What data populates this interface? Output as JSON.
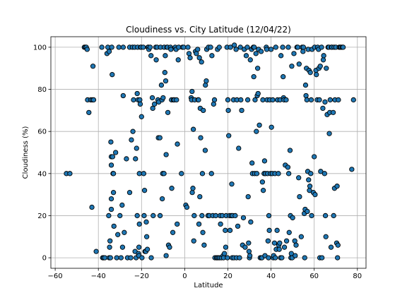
{
  "chart_data": {
    "type": "scatter",
    "title": "Cloudiness vs. City Latitude (12/04/22)",
    "xlabel": "Latitude",
    "ylabel": "Cloudiness (%)",
    "xlim": [
      -62,
      84
    ],
    "ylim": [
      -5,
      105
    ],
    "xticks": [
      -60,
      -40,
      -20,
      0,
      20,
      40,
      60,
      80
    ],
    "yticks": [
      0,
      20,
      40,
      60,
      80,
      100
    ],
    "grid": true,
    "marker_color": "#1f77b4",
    "edge_color": "#000000",
    "points": [
      [
        -54.8,
        40
      ],
      [
        -53.2,
        40
      ],
      [
        -46.5,
        100
      ],
      [
        -46,
        100
      ],
      [
        -45.6,
        100
      ],
      [
        -45.2,
        99
      ],
      [
        -45,
        75
      ],
      [
        -44.4,
        69
      ],
      [
        -43.5,
        75
      ],
      [
        -42.8,
        75
      ],
      [
        -42.5,
        91
      ],
      [
        -43,
        24
      ],
      [
        -42.2,
        75
      ],
      [
        -41,
        3
      ],
      [
        -38.4,
        100
      ],
      [
        -38,
        0
      ],
      [
        -37.6,
        0
      ],
      [
        -37,
        0
      ],
      [
        -36,
        97
      ],
      [
        -35.6,
        100
      ],
      [
        -35.2,
        20
      ],
      [
        -35,
        98
      ],
      [
        -35,
        0
      ],
      [
        -34.8,
        5
      ],
      [
        -34.6,
        8
      ],
      [
        -34.4,
        0
      ],
      [
        -34.2,
        55
      ],
      [
        -34,
        44
      ],
      [
        -34,
        48
      ],
      [
        -34,
        28
      ],
      [
        -34,
        23
      ],
      [
        -33.8,
        100
      ],
      [
        -33.6,
        87
      ],
      [
        -33.4,
        48
      ],
      [
        -33.2,
        40
      ],
      [
        -33,
        40
      ],
      [
        -33,
        31
      ],
      [
        -32.8,
        15
      ],
      [
        -32,
        50
      ],
      [
        -31.5,
        0
      ],
      [
        -31,
        11
      ],
      [
        -30.5,
        100
      ],
      [
        -30,
        20
      ],
      [
        -29.5,
        0
      ],
      [
        -29,
        25
      ],
      [
        -28.8,
        5
      ],
      [
        -28.5,
        100
      ],
      [
        -28.5,
        77
      ],
      [
        -28,
        12
      ],
      [
        -27,
        47
      ],
      [
        -26.5,
        0
      ],
      [
        -25.5,
        100
      ],
      [
        -25.5,
        31
      ],
      [
        -25,
        0
      ],
      [
        -24.7,
        56
      ],
      [
        -24.2,
        100
      ],
      [
        -24,
        60
      ],
      [
        -23.7,
        75
      ],
      [
        -23.2,
        100
      ],
      [
        -23,
        3
      ],
      [
        -22.8,
        47
      ],
      [
        -22.5,
        0
      ],
      [
        -22.3,
        52
      ],
      [
        -22,
        78
      ],
      [
        -22,
        20
      ],
      [
        -21.8,
        100
      ],
      [
        -21.6,
        75
      ],
      [
        -21.4,
        2
      ],
      [
        -21.2,
        5
      ],
      [
        -21.2,
        1
      ],
      [
        -21,
        16
      ],
      [
        -21,
        40
      ],
      [
        -20.8,
        75
      ],
      [
        -20.6,
        73
      ],
      [
        -20.4,
        100
      ],
      [
        -20.2,
        100
      ],
      [
        -20,
        67
      ],
      [
        -19.8,
        0
      ],
      [
        -19.2,
        100
      ],
      [
        -19,
        40
      ],
      [
        -18.8,
        20
      ],
      [
        -18.6,
        32
      ],
      [
        -18.4,
        3
      ],
      [
        -18,
        3
      ],
      [
        -17.8,
        17
      ],
      [
        -17.6,
        10
      ],
      [
        -17.3,
        4
      ],
      [
        -17,
        100
      ],
      [
        -16.8,
        100
      ],
      [
        -16.6,
        99
      ],
      [
        -16,
        100
      ],
      [
        -15.6,
        96
      ],
      [
        -15.5,
        0
      ],
      [
        -15,
        76
      ],
      [
        -14.8,
        71
      ],
      [
        -14.6,
        20
      ],
      [
        -14,
        73
      ],
      [
        -13.4,
        100
      ],
      [
        -13.2,
        94
      ],
      [
        -12.8,
        100
      ],
      [
        -12.4,
        75
      ],
      [
        -12.2,
        57
      ],
      [
        -12,
        74
      ],
      [
        -11.5,
        57
      ],
      [
        -11.4,
        20
      ],
      [
        -11.2,
        100
      ],
      [
        -10.8,
        82
      ],
      [
        -10.5,
        75
      ],
      [
        -10.4,
        28
      ],
      [
        -10.2,
        40
      ],
      [
        -10,
        76
      ],
      [
        -9.6,
        40
      ],
      [
        -9.5,
        100
      ],
      [
        -9.2,
        88
      ],
      [
        -9,
        96
      ],
      [
        -8.8,
        84
      ],
      [
        -8.6,
        49
      ],
      [
        -8.6,
        1
      ],
      [
        -8.2,
        100
      ],
      [
        -8,
        100
      ],
      [
        -7.8,
        69
      ],
      [
        -7.5,
        6
      ],
      [
        -7,
        5
      ],
      [
        -6.6,
        100
      ],
      [
        -6.4,
        99
      ],
      [
        -6.1,
        75
      ],
      [
        -6,
        33
      ],
      [
        -5.5,
        12
      ],
      [
        -5.2,
        75
      ],
      [
        -4.8,
        75
      ],
      [
        -4.4,
        100
      ],
      [
        -4,
        99
      ],
      [
        -3.8,
        75
      ],
      [
        -3.5,
        16
      ],
      [
        -3.4,
        54
      ],
      [
        -3,
        94
      ],
      [
        -2.8,
        100
      ],
      [
        -1.5,
        40
      ],
      [
        -1,
        100
      ],
      [
        -0.5,
        100
      ],
      [
        0.5,
        25
      ],
      [
        1,
        24
      ],
      [
        1.5,
        100
      ],
      [
        2,
        97
      ],
      [
        2.5,
        95
      ],
      [
        3,
        76
      ],
      [
        3.2,
        75
      ],
      [
        3.4,
        79
      ],
      [
        3.5,
        31
      ],
      [
        3.8,
        33
      ],
      [
        4,
        61
      ],
      [
        4.2,
        8
      ],
      [
        4.4,
        20
      ],
      [
        4.6,
        75
      ],
      [
        5,
        98
      ],
      [
        5.4,
        97
      ],
      [
        6,
        99
      ],
      [
        6.2,
        75
      ],
      [
        6.4,
        75
      ],
      [
        6.6,
        16
      ],
      [
        6.8,
        95
      ],
      [
        7,
        29
      ],
      [
        7.2,
        71
      ],
      [
        7.4,
        57
      ],
      [
        7.8,
        93
      ],
      [
        8,
        20
      ],
      [
        8.2,
        40
      ],
      [
        8.4,
        12
      ],
      [
        8.6,
        70
      ],
      [
        9,
        6
      ],
      [
        9.5,
        51
      ],
      [
        9.6,
        82
      ],
      [
        10,
        84
      ],
      [
        10.2,
        99
      ],
      [
        10.8,
        20
      ],
      [
        11,
        100
      ],
      [
        11.4,
        20
      ],
      [
        12,
        100
      ],
      [
        12.4,
        40
      ],
      [
        12.6,
        96
      ],
      [
        13,
        20
      ],
      [
        13.4,
        73
      ],
      [
        13.8,
        75
      ],
      [
        14,
        0
      ],
      [
        14.4,
        20
      ],
      [
        14.8,
        0
      ],
      [
        15,
        0
      ],
      [
        15.2,
        99
      ],
      [
        15.6,
        0
      ],
      [
        16,
        100
      ],
      [
        16.2,
        0
      ],
      [
        16.4,
        20
      ],
      [
        16.6,
        16
      ],
      [
        17,
        0
      ],
      [
        17.4,
        20
      ],
      [
        17.8,
        1
      ],
      [
        18,
        0
      ],
      [
        18.4,
        2
      ],
      [
        18.8,
        13
      ],
      [
        19,
        5
      ],
      [
        19.2,
        20
      ],
      [
        19.6,
        100
      ],
      [
        19.8,
        0
      ],
      [
        20,
        75
      ],
      [
        20.2,
        70
      ],
      [
        20.4,
        58
      ],
      [
        20.8,
        20
      ],
      [
        21,
        13
      ],
      [
        21.2,
        100
      ],
      [
        21.6,
        20
      ],
      [
        21.8,
        35
      ],
      [
        22,
        0
      ],
      [
        22.2,
        20
      ],
      [
        22.6,
        75
      ],
      [
        22.8,
        0
      ],
      [
        23,
        101
      ],
      [
        23.4,
        20
      ],
      [
        23.8,
        99
      ],
      [
        24,
        0
      ],
      [
        24.2,
        75
      ],
      [
        24.6,
        15
      ],
      [
        25,
        52
      ],
      [
        25.4,
        0
      ],
      [
        25.8,
        100
      ],
      [
        26,
        75
      ],
      [
        26.4,
        70
      ],
      [
        26.8,
        6
      ],
      [
        27.2,
        19
      ],
      [
        27.6,
        99
      ],
      [
        28,
        5
      ],
      [
        28.5,
        96
      ],
      [
        29,
        100
      ],
      [
        29.2,
        75
      ],
      [
        29.4,
        29
      ],
      [
        29.6,
        7
      ],
      [
        29.8,
        3
      ],
      [
        30,
        0
      ],
      [
        30.2,
        1
      ],
      [
        30.4,
        94
      ],
      [
        30.6,
        17
      ],
      [
        31,
        99
      ],
      [
        31.2,
        45
      ],
      [
        31.4,
        40
      ],
      [
        31.8,
        100
      ],
      [
        32,
        86
      ],
      [
        32.2,
        100
      ],
      [
        32.4,
        40
      ],
      [
        32.6,
        75
      ],
      [
        33,
        97
      ],
      [
        33.2,
        60
      ],
      [
        33.4,
        40
      ],
      [
        33.6,
        77
      ],
      [
        33.8,
        90
      ],
      [
        34,
        78
      ],
      [
        34.2,
        99
      ],
      [
        34.6,
        63
      ],
      [
        35,
        0
      ],
      [
        35.4,
        98
      ],
      [
        35.6,
        0
      ],
      [
        35.8,
        0
      ],
      [
        36,
        36
      ],
      [
        36.2,
        75
      ],
      [
        36.4,
        32
      ],
      [
        36.8,
        40
      ],
      [
        37,
        46
      ],
      [
        37.2,
        1
      ],
      [
        37.4,
        40
      ],
      [
        37.8,
        100
      ],
      [
        38,
        99
      ],
      [
        38.2,
        75
      ],
      [
        38.4,
        40
      ],
      [
        38.6,
        8
      ],
      [
        38.8,
        0
      ],
      [
        39,
        20
      ],
      [
        39.2,
        13
      ],
      [
        39.4,
        75
      ],
      [
        39.8,
        40
      ],
      [
        40,
        99
      ],
      [
        40.2,
        62
      ],
      [
        40.6,
        40
      ],
      [
        40.8,
        75
      ],
      [
        41,
        0
      ],
      [
        41.2,
        1
      ],
      [
        41.6,
        7
      ],
      [
        41.8,
        40
      ],
      [
        42,
        0
      ],
      [
        42.2,
        100
      ],
      [
        42.4,
        4
      ],
      [
        42.8,
        13
      ],
      [
        43,
        75
      ],
      [
        43.4,
        40
      ],
      [
        43.6,
        6
      ],
      [
        43.8,
        4
      ],
      [
        44,
        7
      ],
      [
        44.2,
        75
      ],
      [
        44.4,
        0
      ],
      [
        44.6,
        96
      ],
      [
        45,
        0
      ],
      [
        45.4,
        100
      ],
      [
        45.6,
        86
      ],
      [
        45.8,
        76
      ],
      [
        46,
        75
      ],
      [
        46.2,
        5
      ],
      [
        46.6,
        44
      ],
      [
        47,
        75
      ],
      [
        47.2,
        8
      ],
      [
        47.8,
        43
      ],
      [
        48,
        100
      ],
      [
        48.2,
        40
      ],
      [
        48.4,
        12
      ],
      [
        48.8,
        51
      ],
      [
        49,
        20
      ],
      [
        49.2,
        0
      ],
      [
        49.4,
        2
      ],
      [
        49.6,
        91
      ],
      [
        49.8,
        0
      ],
      [
        50,
        19
      ],
      [
        50.6,
        97
      ],
      [
        51,
        8
      ],
      [
        51.2,
        1
      ],
      [
        51.6,
        6
      ],
      [
        52,
        100
      ],
      [
        52.4,
        100
      ],
      [
        52.8,
        38
      ],
      [
        53,
        92
      ],
      [
        53.2,
        29
      ],
      [
        54,
        10
      ],
      [
        54.4,
        100
      ],
      [
        54.8,
        98
      ],
      [
        55,
        100
      ],
      [
        55.4,
        21
      ],
      [
        55.6,
        0
      ],
      [
        55.8,
        23
      ],
      [
        56,
        82
      ],
      [
        56.2,
        77
      ],
      [
        56.4,
        90
      ],
      [
        56.6,
        75
      ],
      [
        56.8,
        22
      ],
      [
        57,
        41
      ],
      [
        57.2,
        99
      ],
      [
        57.4,
        37
      ],
      [
        57.6,
        89
      ],
      [
        57.8,
        32
      ],
      [
        58,
        34
      ],
      [
        58.2,
        88
      ],
      [
        58.4,
        40
      ],
      [
        58.6,
        75
      ],
      [
        58.8,
        20
      ],
      [
        59,
        99
      ],
      [
        59.6,
        31
      ],
      [
        60,
        48
      ],
      [
        60.2,
        100
      ],
      [
        60.4,
        30
      ],
      [
        60.8,
        89
      ],
      [
        61,
        87
      ],
      [
        61.4,
        75
      ],
      [
        61.6,
        100
      ],
      [
        62,
        99
      ],
      [
        62.2,
        90
      ],
      [
        62.4,
        75
      ],
      [
        62.6,
        0
      ],
      [
        62.8,
        91
      ],
      [
        63,
        41
      ],
      [
        63.4,
        100
      ],
      [
        63.6,
        0
      ],
      [
        64,
        71
      ],
      [
        64.2,
        94
      ],
      [
        64.4,
        96
      ],
      [
        64.8,
        40
      ],
      [
        65,
        74
      ],
      [
        65.2,
        20
      ],
      [
        65.4,
        10
      ],
      [
        65.6,
        90
      ],
      [
        66,
        68
      ],
      [
        66.4,
        100
      ],
      [
        66.8,
        100
      ],
      [
        67,
        59
      ],
      [
        67.2,
        69
      ],
      [
        67.4,
        75
      ],
      [
        67.8,
        5
      ],
      [
        68,
        100
      ],
      [
        68.2,
        100
      ],
      [
        68.8,
        69
      ],
      [
        69,
        20
      ],
      [
        69.2,
        100
      ],
      [
        69.4,
        33
      ],
      [
        69.6,
        75
      ],
      [
        70,
        100
      ],
      [
        70.4,
        7
      ],
      [
        70.6,
        34
      ],
      [
        70.8,
        0
      ],
      [
        71,
        6
      ],
      [
        71.2,
        75
      ],
      [
        71.6,
        100
      ],
      [
        72,
        100
      ],
      [
        72.4,
        100
      ],
      [
        73,
        100
      ],
      [
        73.4,
        100
      ],
      [
        77.4,
        42
      ],
      [
        78.2,
        75
      ]
    ]
  }
}
